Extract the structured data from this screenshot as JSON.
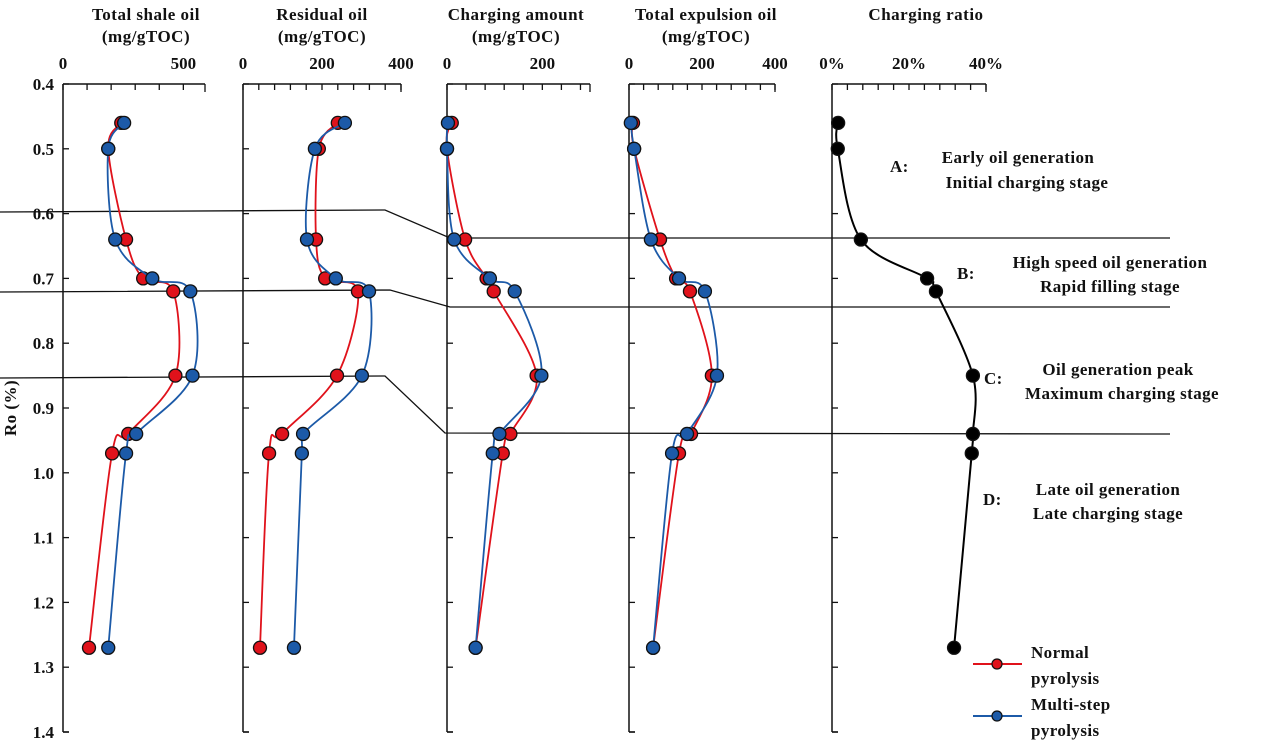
{
  "chart_data": {
    "type": "line",
    "ylabel": "Ro (%)",
    "ylim": [
      0.4,
      1.4
    ],
    "yticks": [
      "0.4",
      "0.5",
      "0.6",
      "0.7",
      "0.8",
      "0.9",
      "1.0",
      "1.1",
      "1.2",
      "1.3",
      "1.4"
    ],
    "y_inverted": true,
    "ro": [
      0.46,
      0.5,
      0.64,
      0.7,
      0.72,
      0.85,
      0.94,
      0.97,
      1.27
    ],
    "colors": {
      "normal": "#e0121b",
      "multistep": "#1c5aa8",
      "ratio": "#000000"
    },
    "panels": [
      {
        "title_line1": "Total shale oil",
        "title_line2": "(mg/gTOC)",
        "xlim": [
          0,
          590
        ],
        "tick_step": 100,
        "xticklabels": [
          {
            "v": 0,
            "t": "0"
          },
          {
            "v": 500,
            "t": "500"
          }
        ],
        "series": [
          {
            "name": "Normal pyrolysis",
            "values": [
              242,
              188,
              262,
              333,
              458,
              467,
              271,
              204,
              108
            ]
          },
          {
            "name": "Multi-step pyrolysis",
            "values": [
              254,
              188,
              217,
              371,
              529,
              538,
              304,
              262,
              188
            ]
          }
        ]
      },
      {
        "title_line1": "Residual oil",
        "title_line2": "(mg/gTOC)",
        "xlim": [
          0,
          400
        ],
        "tick_step": 40,
        "xticklabels": [
          {
            "v": 0,
            "t": "0"
          },
          {
            "v": 200,
            "t": "200"
          },
          {
            "v": 400,
            "t": "400"
          }
        ],
        "series": [
          {
            "name": "Normal pyrolysis",
            "values": [
              240,
              192,
              185,
              208,
              291,
              238,
              99,
              66,
              43
            ]
          },
          {
            "name": "Multi-step pyrolysis",
            "values": [
              258,
              182,
              162,
              235,
              319,
              301,
              152,
              149,
              129
            ]
          }
        ]
      },
      {
        "title_line1": "Charging amount",
        "title_line2": "(mg/gTOC)",
        "xlim": [
          0,
          300
        ],
        "tick_step": 40,
        "xticklabels": [
          {
            "v": 0,
            "t": "0"
          },
          {
            "v": 200,
            "t": "200"
          }
        ],
        "series": [
          {
            "name": "Normal pyrolysis",
            "values": [
              10,
              0,
              38,
              83,
              98,
              188,
              133,
              117,
              60
            ]
          },
          {
            "name": "Multi-step pyrolysis",
            "values": [
              2,
              0,
              15,
              90,
              142,
              198,
              110,
              96,
              60
            ]
          }
        ]
      },
      {
        "title_line1": "Total expulsion oil",
        "title_line2": "(mg/gTOC)",
        "xlim": [
          0,
          400
        ],
        "tick_step": 40,
        "xticklabels": [
          {
            "v": 0,
            "t": "0"
          },
          {
            "v": 200,
            "t": "200"
          },
          {
            "v": 400,
            "t": "400"
          }
        ],
        "series": [
          {
            "name": "Normal pyrolysis",
            "values": [
              11,
              14,
              85,
              129,
              167,
              227,
              170,
              137,
              66
            ]
          },
          {
            "name": "Multi-step pyrolysis",
            "values": [
              5,
              14,
              60,
              137,
              208,
              241,
              159,
              118,
              66
            ]
          }
        ]
      },
      {
        "title_line1": "Charging ratio",
        "title_line2": "",
        "xlim": [
          0,
          40
        ],
        "tick_step": 4,
        "xticklabels": [
          {
            "v": 0,
            "t": "0%"
          },
          {
            "v": 20,
            "t": "20%"
          },
          {
            "v": 40,
            "t": "40%"
          }
        ],
        "series": [
          {
            "name": "Charging ratio (%)",
            "values": [
              1.6,
              1.5,
              7.5,
              24.7,
              27.0,
              36.6,
              36.6,
              36.3,
              31.7
            ]
          }
        ]
      }
    ],
    "stages": [
      {
        "letter": "A:",
        "line1": "Early oil generation",
        "line2": "Initial charging stage"
      },
      {
        "letter": "B:",
        "line1": "High speed oil generation",
        "line2": "Rapid filling stage"
      },
      {
        "letter": "C:",
        "line1": "Oil generation peak",
        "line2": "Maximum charging stage"
      },
      {
        "letter": "D:",
        "line1": "Late oil generation",
        "line2": "Late charging stage"
      }
    ],
    "legend": [
      {
        "line1": "Normal",
        "line2": "pyrolysis"
      },
      {
        "line1": "Multi-step",
        "line2": "pyrolysis"
      }
    ]
  }
}
